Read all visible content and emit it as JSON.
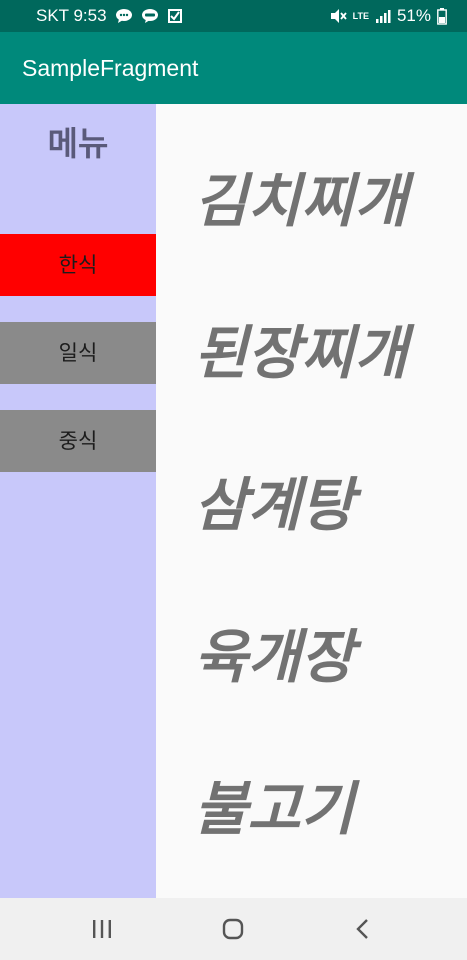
{
  "status_bar": {
    "carrier_time": "SKT 9:53",
    "network": "LTE",
    "battery": "51%",
    "icons": [
      "message-bubble-icon",
      "talk-icon",
      "delivery-check-icon",
      "mute-icon",
      "lte-icon",
      "signal-icon",
      "battery-icon"
    ]
  },
  "app_bar": {
    "title": "SampleFragment"
  },
  "menu": {
    "title": "메뉴",
    "buttons": [
      {
        "label": "한식",
        "color": "#ff0000"
      },
      {
        "label": "일식",
        "color": "#8a8a8a"
      },
      {
        "label": "중식",
        "color": "#8a8a8a"
      }
    ]
  },
  "content": {
    "dishes": [
      "김치찌개",
      "된장찌개",
      "삼계탕",
      "육개장",
      "불고기"
    ]
  },
  "nav_bar": {
    "icons": [
      "recent-apps-icon",
      "home-icon",
      "back-icon"
    ]
  },
  "colors": {
    "status_bar": "#00685c",
    "app_bar": "#00897b",
    "menu_background": "#c8c8fa",
    "content_background": "#fafafa",
    "dish_text": "#727272",
    "selected_menu": "#ff0000",
    "unselected_menu": "#8a8a8a"
  }
}
